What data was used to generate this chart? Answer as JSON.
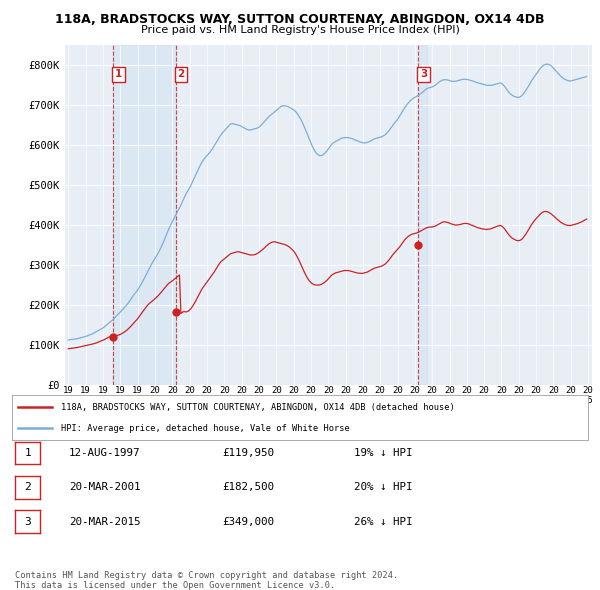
{
  "title_line1": "118A, BRADSTOCKS WAY, SUTTON COURTENAY, ABINGDON, OX14 4DB",
  "title_line2": "Price paid vs. HM Land Registry's House Price Index (HPI)",
  "hpi_color": "#7eadd4",
  "price_color": "#cc2222",
  "sale_marker_color": "#cc2222",
  "dashed_line_color": "#cc3333",
  "shade_color": "#ddeeff",
  "bg_color": "#e8eef5",
  "plot_bg_color": "#e8eef5",
  "ylim": [
    0,
    850000
  ],
  "yticks": [
    0,
    100000,
    200000,
    300000,
    400000,
    500000,
    600000,
    700000,
    800000
  ],
  "ytick_labels": [
    "£0",
    "£100K",
    "£200K",
    "£300K",
    "£400K",
    "£500K",
    "£600K",
    "£700K",
    "£800K"
  ],
  "x_start_year": 1995,
  "x_end_year": 2025,
  "sale_dates": [
    1997.6,
    2001.2,
    2015.2
  ],
  "sale_prices": [
    119950,
    182500,
    349000
  ],
  "sale_labels": [
    "1",
    "2",
    "3"
  ],
  "legend_line1": "118A, BRADSTOCKS WAY, SUTTON COURTENAY, ABINGDON, OX14 4DB (detached house)",
  "legend_line2": "HPI: Average price, detached house, Vale of White Horse",
  "table_rows": [
    [
      "1",
      "12-AUG-1997",
      "£119,950",
      "19% ↓ HPI"
    ],
    [
      "2",
      "20-MAR-2001",
      "£182,500",
      "20% ↓ HPI"
    ],
    [
      "3",
      "20-MAR-2015",
      "£349,000",
      "26% ↓ HPI"
    ]
  ],
  "footer_text": "Contains HM Land Registry data © Crown copyright and database right 2024.\nThis data is licensed under the Open Government Licence v3.0.",
  "hpi_data_x": [
    1995.0,
    1995.083,
    1995.167,
    1995.25,
    1995.333,
    1995.417,
    1995.5,
    1995.583,
    1995.667,
    1995.75,
    1995.833,
    1995.917,
    1996.0,
    1996.083,
    1996.167,
    1996.25,
    1996.333,
    1996.417,
    1996.5,
    1996.583,
    1996.667,
    1996.75,
    1996.833,
    1996.917,
    1997.0,
    1997.083,
    1997.167,
    1997.25,
    1997.333,
    1997.417,
    1997.5,
    1997.583,
    1997.667,
    1997.75,
    1997.833,
    1997.917,
    1998.0,
    1998.083,
    1998.167,
    1998.25,
    1998.333,
    1998.417,
    1998.5,
    1998.583,
    1998.667,
    1998.75,
    1998.833,
    1998.917,
    1999.0,
    1999.083,
    1999.167,
    1999.25,
    1999.333,
    1999.417,
    1999.5,
    1999.583,
    1999.667,
    1999.75,
    1999.833,
    1999.917,
    2000.0,
    2000.083,
    2000.167,
    2000.25,
    2000.333,
    2000.417,
    2000.5,
    2000.583,
    2000.667,
    2000.75,
    2000.833,
    2000.917,
    2001.0,
    2001.083,
    2001.167,
    2001.25,
    2001.333,
    2001.417,
    2001.5,
    2001.583,
    2001.667,
    2001.75,
    2001.833,
    2001.917,
    2002.0,
    2002.083,
    2002.167,
    2002.25,
    2002.333,
    2002.417,
    2002.5,
    2002.583,
    2002.667,
    2002.75,
    2002.833,
    2002.917,
    2003.0,
    2003.083,
    2003.167,
    2003.25,
    2003.333,
    2003.417,
    2003.5,
    2003.583,
    2003.667,
    2003.75,
    2003.833,
    2003.917,
    2004.0,
    2004.083,
    2004.167,
    2004.25,
    2004.333,
    2004.417,
    2004.5,
    2004.583,
    2004.667,
    2004.75,
    2004.833,
    2004.917,
    2005.0,
    2005.083,
    2005.167,
    2005.25,
    2005.333,
    2005.417,
    2005.5,
    2005.583,
    2005.667,
    2005.75,
    2005.833,
    2005.917,
    2006.0,
    2006.083,
    2006.167,
    2006.25,
    2006.333,
    2006.417,
    2006.5,
    2006.583,
    2006.667,
    2006.75,
    2006.833,
    2006.917,
    2007.0,
    2007.083,
    2007.167,
    2007.25,
    2007.333,
    2007.417,
    2007.5,
    2007.583,
    2007.667,
    2007.75,
    2007.833,
    2007.917,
    2008.0,
    2008.083,
    2008.167,
    2008.25,
    2008.333,
    2008.417,
    2008.5,
    2008.583,
    2008.667,
    2008.75,
    2008.833,
    2008.917,
    2009.0,
    2009.083,
    2009.167,
    2009.25,
    2009.333,
    2009.417,
    2009.5,
    2009.583,
    2009.667,
    2009.75,
    2009.833,
    2009.917,
    2010.0,
    2010.083,
    2010.167,
    2010.25,
    2010.333,
    2010.417,
    2010.5,
    2010.583,
    2010.667,
    2010.75,
    2010.833,
    2010.917,
    2011.0,
    2011.083,
    2011.167,
    2011.25,
    2011.333,
    2011.417,
    2011.5,
    2011.583,
    2011.667,
    2011.75,
    2011.833,
    2011.917,
    2012.0,
    2012.083,
    2012.167,
    2012.25,
    2012.333,
    2012.417,
    2012.5,
    2012.583,
    2012.667,
    2012.75,
    2012.833,
    2012.917,
    2013.0,
    2013.083,
    2013.167,
    2013.25,
    2013.333,
    2013.417,
    2013.5,
    2013.583,
    2013.667,
    2013.75,
    2013.833,
    2013.917,
    2014.0,
    2014.083,
    2014.167,
    2014.25,
    2014.333,
    2014.417,
    2014.5,
    2014.583,
    2014.667,
    2014.75,
    2014.833,
    2014.917,
    2015.0,
    2015.083,
    2015.167,
    2015.25,
    2015.333,
    2015.417,
    2015.5,
    2015.583,
    2015.667,
    2015.75,
    2015.833,
    2015.917,
    2016.0,
    2016.083,
    2016.167,
    2016.25,
    2016.333,
    2016.417,
    2016.5,
    2016.583,
    2016.667,
    2016.75,
    2016.833,
    2016.917,
    2017.0,
    2017.083,
    2017.167,
    2017.25,
    2017.333,
    2017.417,
    2017.5,
    2017.583,
    2017.667,
    2017.75,
    2017.833,
    2017.917,
    2018.0,
    2018.083,
    2018.167,
    2018.25,
    2018.333,
    2018.417,
    2018.5,
    2018.583,
    2018.667,
    2018.75,
    2018.833,
    2018.917,
    2019.0,
    2019.083,
    2019.167,
    2019.25,
    2019.333,
    2019.417,
    2019.5,
    2019.583,
    2019.667,
    2019.75,
    2019.833,
    2019.917,
    2020.0,
    2020.083,
    2020.167,
    2020.25,
    2020.333,
    2020.417,
    2020.5,
    2020.583,
    2020.667,
    2020.75,
    2020.833,
    2020.917,
    2021.0,
    2021.083,
    2021.167,
    2021.25,
    2021.333,
    2021.417,
    2021.5,
    2021.583,
    2021.667,
    2021.75,
    2021.833,
    2021.917,
    2022.0,
    2022.083,
    2022.167,
    2022.25,
    2022.333,
    2022.417,
    2022.5,
    2022.583,
    2022.667,
    2022.75,
    2022.833,
    2022.917,
    2023.0,
    2023.083,
    2023.167,
    2023.25,
    2023.333,
    2023.417,
    2023.5,
    2023.583,
    2023.667,
    2023.75,
    2023.833,
    2023.917,
    2024.0,
    2024.083,
    2024.167,
    2024.25,
    2024.333,
    2024.417,
    2024.5,
    2024.583,
    2024.667,
    2024.75,
    2024.833,
    2024.917
  ],
  "hpi_data_y": [
    112000,
    112500,
    113000,
    113500,
    114000,
    114500,
    115000,
    116000,
    117000,
    118000,
    119000,
    120000,
    121000,
    122000,
    123500,
    125000,
    126500,
    128000,
    130000,
    132000,
    134000,
    136000,
    138000,
    140000,
    142000,
    145000,
    148000,
    151000,
    154000,
    157000,
    160000,
    163000,
    167000,
    171000,
    175000,
    178000,
    182000,
    186000,
    190000,
    194000,
    198000,
    202000,
    207000,
    212000,
    218000,
    223000,
    228000,
    232000,
    237000,
    243000,
    249000,
    255000,
    262000,
    269000,
    276000,
    283000,
    290000,
    297000,
    304000,
    310000,
    316000,
    322000,
    328000,
    335000,
    342000,
    350000,
    358000,
    367000,
    376000,
    385000,
    393000,
    401000,
    408000,
    415000,
    422000,
    429000,
    436000,
    443000,
    450000,
    458000,
    466000,
    474000,
    481000,
    487000,
    493000,
    500000,
    508000,
    516000,
    524000,
    532000,
    540000,
    547000,
    554000,
    560000,
    565000,
    570000,
    574000,
    578000,
    582000,
    587000,
    592000,
    598000,
    604000,
    610000,
    616000,
    622000,
    627000,
    632000,
    636000,
    640000,
    644000,
    648000,
    652000,
    654000,
    654000,
    653000,
    652000,
    651000,
    650000,
    649000,
    647000,
    645000,
    643000,
    641000,
    639000,
    638000,
    638000,
    639000,
    640000,
    641000,
    642000,
    643000,
    645000,
    648000,
    652000,
    656000,
    660000,
    664000,
    668000,
    672000,
    675000,
    678000,
    681000,
    684000,
    687000,
    690000,
    693000,
    696000,
    698000,
    699000,
    699000,
    698000,
    697000,
    695000,
    693000,
    691000,
    689000,
    686000,
    682000,
    677000,
    671000,
    665000,
    658000,
    650000,
    641000,
    632000,
    623000,
    614000,
    605000,
    597000,
    590000,
    584000,
    579000,
    576000,
    574000,
    574000,
    575000,
    578000,
    581000,
    585000,
    590000,
    595000,
    600000,
    604000,
    607000,
    609000,
    611000,
    613000,
    615000,
    617000,
    618000,
    619000,
    619000,
    619000,
    619000,
    618000,
    617000,
    616000,
    614000,
    613000,
    611000,
    610000,
    608000,
    607000,
    606000,
    606000,
    606000,
    607000,
    608000,
    610000,
    612000,
    614000,
    616000,
    617000,
    618000,
    619000,
    620000,
    621000,
    623000,
    625000,
    628000,
    632000,
    636000,
    641000,
    646000,
    651000,
    656000,
    660000,
    665000,
    670000,
    676000,
    682000,
    688000,
    694000,
    699000,
    704000,
    708000,
    712000,
    715000,
    718000,
    720000,
    722000,
    724000,
    726000,
    729000,
    732000,
    735000,
    738000,
    741000,
    743000,
    744000,
    745000,
    746000,
    748000,
    750000,
    753000,
    756000,
    759000,
    761000,
    763000,
    764000,
    764000,
    764000,
    763000,
    762000,
    761000,
    760000,
    760000,
    760000,
    761000,
    762000,
    763000,
    764000,
    765000,
    765000,
    765000,
    765000,
    764000,
    763000,
    762000,
    761000,
    760000,
    758000,
    757000,
    756000,
    755000,
    754000,
    753000,
    752000,
    751000,
    750000,
    750000,
    750000,
    750000,
    751000,
    752000,
    753000,
    754000,
    755000,
    756000,
    755000,
    752000,
    748000,
    743000,
    738000,
    733000,
    729000,
    726000,
    724000,
    722000,
    721000,
    720000,
    720000,
    721000,
    724000,
    728000,
    733000,
    738000,
    744000,
    750000,
    756000,
    762000,
    768000,
    773000,
    778000,
    783000,
    788000,
    793000,
    797000,
    800000,
    802000,
    803000,
    803000,
    802000,
    800000,
    797000,
    793000,
    789000,
    785000,
    781000,
    777000,
    773000,
    770000,
    767000,
    765000,
    763000,
    762000,
    761000,
    761000,
    762000,
    763000,
    764000,
    765000,
    766000,
    767000,
    768000,
    769000,
    770000,
    771000,
    772000
  ],
  "price_data_x": [
    1995.0,
    1995.083,
    1995.167,
    1995.25,
    1995.333,
    1995.417,
    1995.5,
    1995.583,
    1995.667,
    1995.75,
    1995.833,
    1995.917,
    1996.0,
    1996.083,
    1996.167,
    1996.25,
    1996.333,
    1996.417,
    1996.5,
    1996.583,
    1996.667,
    1996.75,
    1996.833,
    1996.917,
    1997.0,
    1997.083,
    1997.167,
    1997.25,
    1997.333,
    1997.417,
    1997.5,
    1997.583,
    1997.667,
    1997.75,
    1997.833,
    1997.917,
    1998.0,
    1998.083,
    1998.167,
    1998.25,
    1998.333,
    1998.417,
    1998.5,
    1998.583,
    1998.667,
    1998.75,
    1998.833,
    1998.917,
    1999.0,
    1999.083,
    1999.167,
    1999.25,
    1999.333,
    1999.417,
    1999.5,
    1999.583,
    1999.667,
    1999.75,
    1999.833,
    1999.917,
    2000.0,
    2000.083,
    2000.167,
    2000.25,
    2000.333,
    2000.417,
    2000.5,
    2000.583,
    2000.667,
    2000.75,
    2000.833,
    2000.917,
    2001.0,
    2001.083,
    2001.167,
    2001.25,
    2001.333,
    2001.417,
    2001.5,
    2001.583,
    2001.667,
    2001.75,
    2001.833,
    2001.917,
    2002.0,
    2002.083,
    2002.167,
    2002.25,
    2002.333,
    2002.417,
    2002.5,
    2002.583,
    2002.667,
    2002.75,
    2002.833,
    2002.917,
    2003.0,
    2003.083,
    2003.167,
    2003.25,
    2003.333,
    2003.417,
    2003.5,
    2003.583,
    2003.667,
    2003.75,
    2003.833,
    2003.917,
    2004.0,
    2004.083,
    2004.167,
    2004.25,
    2004.333,
    2004.417,
    2004.5,
    2004.583,
    2004.667,
    2004.75,
    2004.833,
    2004.917,
    2005.0,
    2005.083,
    2005.167,
    2005.25,
    2005.333,
    2005.417,
    2005.5,
    2005.583,
    2005.667,
    2005.75,
    2005.833,
    2005.917,
    2006.0,
    2006.083,
    2006.167,
    2006.25,
    2006.333,
    2006.417,
    2006.5,
    2006.583,
    2006.667,
    2006.75,
    2006.833,
    2006.917,
    2007.0,
    2007.083,
    2007.167,
    2007.25,
    2007.333,
    2007.417,
    2007.5,
    2007.583,
    2007.667,
    2007.75,
    2007.833,
    2007.917,
    2008.0,
    2008.083,
    2008.167,
    2008.25,
    2008.333,
    2008.417,
    2008.5,
    2008.583,
    2008.667,
    2008.75,
    2008.833,
    2008.917,
    2009.0,
    2009.083,
    2009.167,
    2009.25,
    2009.333,
    2009.417,
    2009.5,
    2009.583,
    2009.667,
    2009.75,
    2009.833,
    2009.917,
    2010.0,
    2010.083,
    2010.167,
    2010.25,
    2010.333,
    2010.417,
    2010.5,
    2010.583,
    2010.667,
    2010.75,
    2010.833,
    2010.917,
    2011.0,
    2011.083,
    2011.167,
    2011.25,
    2011.333,
    2011.417,
    2011.5,
    2011.583,
    2011.667,
    2011.75,
    2011.833,
    2011.917,
    2012.0,
    2012.083,
    2012.167,
    2012.25,
    2012.333,
    2012.417,
    2012.5,
    2012.583,
    2012.667,
    2012.75,
    2012.833,
    2012.917,
    2013.0,
    2013.083,
    2013.167,
    2013.25,
    2013.333,
    2013.417,
    2013.5,
    2013.583,
    2013.667,
    2013.75,
    2013.833,
    2013.917,
    2014.0,
    2014.083,
    2014.167,
    2014.25,
    2014.333,
    2014.417,
    2014.5,
    2014.583,
    2014.667,
    2014.75,
    2014.833,
    2014.917,
    2015.0,
    2015.083,
    2015.167,
    2015.25,
    2015.333,
    2015.417,
    2015.5,
    2015.583,
    2015.667,
    2015.75,
    2015.833,
    2015.917,
    2016.0,
    2016.083,
    2016.167,
    2016.25,
    2016.333,
    2016.417,
    2016.5,
    2016.583,
    2016.667,
    2016.75,
    2016.833,
    2016.917,
    2017.0,
    2017.083,
    2017.167,
    2017.25,
    2017.333,
    2017.417,
    2017.5,
    2017.583,
    2017.667,
    2017.75,
    2017.833,
    2017.917,
    2018.0,
    2018.083,
    2018.167,
    2018.25,
    2018.333,
    2018.417,
    2018.5,
    2018.583,
    2018.667,
    2018.75,
    2018.833,
    2018.917,
    2019.0,
    2019.083,
    2019.167,
    2019.25,
    2019.333,
    2019.417,
    2019.5,
    2019.583,
    2019.667,
    2019.75,
    2019.833,
    2019.917,
    2020.0,
    2020.083,
    2020.167,
    2020.25,
    2020.333,
    2020.417,
    2020.5,
    2020.583,
    2020.667,
    2020.75,
    2020.833,
    2020.917,
    2021.0,
    2021.083,
    2021.167,
    2021.25,
    2021.333,
    2021.417,
    2021.5,
    2021.583,
    2021.667,
    2021.75,
    2021.833,
    2021.917,
    2022.0,
    2022.083,
    2022.167,
    2022.25,
    2022.333,
    2022.417,
    2022.5,
    2022.583,
    2022.667,
    2022.75,
    2022.833,
    2022.917,
    2023.0,
    2023.083,
    2023.167,
    2023.25,
    2023.333,
    2023.417,
    2023.5,
    2023.583,
    2023.667,
    2023.75,
    2023.833,
    2023.917,
    2024.0,
    2024.083,
    2024.167,
    2024.25,
    2024.333,
    2024.417,
    2024.5,
    2024.583,
    2024.667,
    2024.75,
    2024.833,
    2024.917
  ],
  "price_data_y": [
    90000,
    90500,
    91000,
    91500,
    92000,
    92500,
    93000,
    93800,
    94600,
    95500,
    96300,
    97000,
    97800,
    98600,
    99400,
    100200,
    101000,
    102000,
    103000,
    104000,
    105500,
    107000,
    108500,
    110000,
    111500,
    113000,
    115000,
    117000,
    119000,
    119950,
    119950,
    120500,
    121500,
    122500,
    123500,
    124500,
    126000,
    128000,
    130000,
    132500,
    135000,
    138000,
    141500,
    145000,
    149000,
    153000,
    157000,
    161000,
    165000,
    170000,
    175000,
    180000,
    185000,
    190000,
    195000,
    199500,
    203000,
    206000,
    209000,
    212000,
    215000,
    218500,
    222000,
    226000,
    230000,
    234500,
    239000,
    243500,
    248000,
    252000,
    255000,
    257500,
    260000,
    263000,
    266000,
    269000,
    272000,
    275000,
    178500,
    181000,
    183500,
    182500,
    182500,
    184000,
    187000,
    191000,
    196000,
    202000,
    208000,
    215000,
    222000,
    229000,
    236000,
    242000,
    247000,
    252000,
    257000,
    262000,
    267000,
    272000,
    277000,
    282000,
    288000,
    294000,
    300000,
    305000,
    309000,
    312000,
    315000,
    318000,
    321000,
    324000,
    327000,
    329000,
    330000,
    331000,
    332000,
    333000,
    333000,
    332000,
    331000,
    330000,
    329000,
    328000,
    327000,
    326000,
    325000,
    325000,
    325000,
    326000,
    327000,
    329000,
    331000,
    334000,
    337000,
    340000,
    343000,
    347000,
    350000,
    353000,
    355000,
    357000,
    358000,
    358000,
    357000,
    356000,
    355000,
    354000,
    353000,
    352000,
    351000,
    349500,
    347500,
    345000,
    342000,
    338500,
    335000,
    330000,
    324000,
    317000,
    310000,
    302000,
    294000,
    286000,
    278000,
    271000,
    265000,
    260000,
    256000,
    253000,
    251000,
    250000,
    249500,
    249500,
    250000,
    251000,
    253000,
    255000,
    258000,
    261000,
    265000,
    269000,
    273000,
    276000,
    278000,
    280000,
    281000,
    282000,
    283000,
    284000,
    285000,
    286000,
    286000,
    286000,
    286000,
    285000,
    284000,
    283000,
    282000,
    281000,
    280000,
    279500,
    279000,
    279000,
    279000,
    280000,
    281000,
    282000,
    284000,
    286000,
    288000,
    290000,
    292000,
    293000,
    294000,
    295000,
    296000,
    297000,
    299000,
    301000,
    304000,
    308000,
    312000,
    317000,
    322000,
    327000,
    331000,
    335000,
    339000,
    343000,
    348000,
    353000,
    358000,
    363000,
    367000,
    370000,
    373000,
    375000,
    377000,
    378000,
    379000,
    380000,
    381000,
    383000,
    385000,
    387000,
    389000,
    391000,
    393000,
    394000,
    395000,
    395000,
    395000,
    396000,
    397000,
    399000,
    401000,
    403000,
    405000,
    407000,
    408000,
    408000,
    407000,
    406000,
    405000,
    403000,
    402000,
    401000,
    400000,
    400000,
    400500,
    401000,
    402000,
    403000,
    404000,
    404000,
    404000,
    403000,
    402000,
    400000,
    399000,
    397000,
    396000,
    394000,
    393000,
    392000,
    391000,
    390000,
    390000,
    389000,
    389000,
    389500,
    390000,
    391000,
    392500,
    394000,
    395500,
    397000,
    398000,
    399000,
    398000,
    395000,
    391000,
    386000,
    381000,
    376000,
    372000,
    368000,
    366000,
    364000,
    362000,
    361000,
    361000,
    362000,
    364000,
    368000,
    373000,
    378000,
    384000,
    390000,
    396000,
    402000,
    407000,
    412000,
    416000,
    420000,
    424000,
    428000,
    431000,
    433000,
    434000,
    434000,
    433000,
    431000,
    429000,
    426000,
    423000,
    420000,
    416000,
    413000,
    410000,
    407000,
    405000,
    403000,
    401000,
    400000,
    399000,
    399000,
    399000,
    400000,
    401000,
    402000,
    403000,
    404000,
    406000,
    407000,
    409000,
    411000,
    413000,
    415000
  ]
}
